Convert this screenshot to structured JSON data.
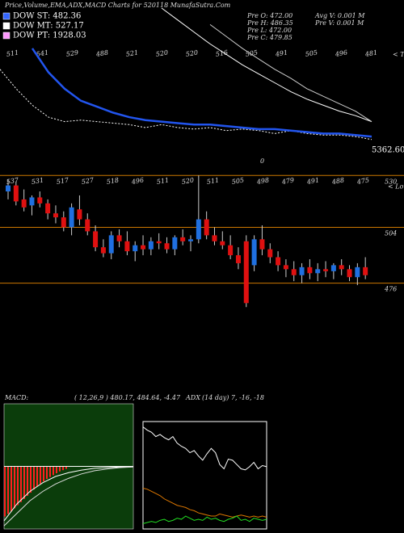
{
  "header": {
    "title": "Price,Volume,EMA,ADX,MACD Charts for 520118 MunafaSutra.Com"
  },
  "legend": [
    {
      "label": "DOW ST: 482.36",
      "color": "#3366ff"
    },
    {
      "label": "DOW MT: 527.17",
      "color": "#ffffff"
    },
    {
      "label": "DOW PT: 1928.03",
      "color": "#ff99ff"
    }
  ],
  "info": [
    "Pre  O: 472.00",
    "Pre  H: 486.35",
    "Pre  L: 472.00",
    "Pre  C: 479.85"
  ],
  "info2": [
    "Avg  V: 0.001 M",
    "Pre  V: 0.001 M"
  ],
  "chart_data": [
    {
      "type": "line",
      "tops_label": "< Tops",
      "price_label": "5362.60",
      "zero_label": "0",
      "xlim": [
        0,
        23
      ],
      "ylim": [
        0,
        100
      ],
      "labels": [
        511,
        541,
        529,
        488,
        521,
        520,
        520,
        516,
        505,
        491,
        505,
        496,
        481
      ],
      "series": [
        {
          "name": "price",
          "color": "#ffffff",
          "dash": true,
          "x": [
            0,
            1,
            2,
            3,
            4,
            5,
            6,
            7,
            8,
            9,
            10,
            11,
            12,
            13,
            14,
            15,
            16,
            17,
            18,
            19,
            20,
            21,
            22,
            23
          ],
          "values": [
            59,
            46,
            35,
            27,
            24,
            25,
            24,
            23,
            22,
            20,
            22,
            20,
            19,
            20,
            18,
            19,
            18,
            16,
            18,
            16,
            15,
            15,
            14,
            12
          ]
        },
        {
          "name": "ema",
          "color": "#2255ee",
          "width": 2.5,
          "x": [
            2,
            3,
            4,
            5,
            6,
            7,
            8,
            9,
            10,
            11,
            12,
            13,
            14,
            15,
            16,
            17,
            18,
            19,
            20,
            21,
            22,
            23
          ],
          "values": [
            73,
            57,
            46,
            38,
            34,
            30,
            27,
            25,
            24,
            23,
            22,
            22,
            21,
            20,
            19,
            19,
            18,
            17,
            16,
            16,
            15,
            14
          ]
        },
        {
          "name": "tops",
          "color": "#ffffff",
          "x": [
            10,
            11,
            12,
            13,
            14,
            15,
            16,
            17,
            18,
            19,
            20,
            21,
            22,
            23
          ],
          "values": [
            100,
            92,
            84,
            76,
            69,
            62,
            56,
            50,
            44,
            39,
            35,
            31,
            28,
            24
          ]
        },
        {
          "name": "tops2",
          "color": "#cccccc",
          "x": [
            13,
            14,
            15,
            16,
            17,
            18,
            19,
            20,
            21,
            22,
            23
          ],
          "values": [
            89,
            81,
            73,
            66,
            59,
            53,
            46,
            41,
            36,
            31,
            24
          ]
        }
      ]
    },
    {
      "type": "candlestick",
      "lows_label": "< Lows",
      "ylim": [
        456,
        537
      ],
      "levels": [
        530,
        504,
        476
      ],
      "level_color": "#cc7700",
      "up_color": "#1f6fe0",
      "down_color": "#e01010",
      "labels": [
        537,
        531,
        517,
        527,
        518,
        496,
        511,
        520,
        511,
        505,
        498,
        479,
        491,
        488,
        475
      ],
      "candles": [
        [
          522,
          528,
          518,
          525
        ],
        [
          525,
          527,
          515,
          517
        ],
        [
          518,
          523,
          512,
          514
        ],
        [
          515,
          520,
          510,
          519
        ],
        [
          519,
          522,
          514,
          516
        ],
        [
          516,
          518,
          508,
          511
        ],
        [
          511,
          515,
          506,
          509
        ],
        [
          509,
          512,
          502,
          504
        ],
        [
          504,
          516,
          500,
          514
        ],
        [
          513,
          520,
          505,
          508
        ],
        [
          508,
          511,
          500,
          502
        ],
        [
          502,
          505,
          492,
          494
        ],
        [
          494,
          498,
          489,
          491
        ],
        [
          491,
          502,
          488,
          500
        ],
        [
          500,
          503,
          494,
          497
        ],
        [
          497,
          502,
          490,
          492
        ],
        [
          492,
          497,
          487,
          495
        ],
        [
          495,
          500,
          490,
          493
        ],
        [
          493,
          499,
          490,
          497
        ],
        [
          497,
          501,
          493,
          496
        ],
        [
          496,
          499,
          491,
          493
        ],
        [
          493,
          500,
          490,
          499
        ],
        [
          499,
          503,
          495,
          497
        ],
        [
          497,
          500,
          492,
          498
        ],
        [
          498,
          530,
          496,
          508
        ],
        [
          508,
          512,
          498,
          500
        ],
        [
          500,
          504,
          495,
          497
        ],
        [
          497,
          502,
          493,
          495
        ],
        [
          495,
          500,
          488,
          490
        ],
        [
          490,
          494,
          483,
          486
        ],
        [
          497,
          500,
          464,
          466
        ],
        [
          485,
          500,
          482,
          498
        ],
        [
          498,
          505,
          490,
          493
        ],
        [
          493,
          496,
          486,
          489
        ],
        [
          489,
          492,
          482,
          485
        ],
        [
          485,
          488,
          479,
          483
        ],
        [
          483,
          487,
          477,
          480
        ],
        [
          480,
          486,
          476,
          484
        ],
        [
          484,
          488,
          478,
          481
        ],
        [
          481,
          486,
          477,
          483
        ],
        [
          483,
          487,
          479,
          482
        ],
        [
          482,
          486,
          478,
          485
        ],
        [
          485,
          488,
          480,
          483
        ],
        [
          483,
          485,
          477,
          479
        ],
        [
          479,
          486,
          475,
          484
        ],
        [
          484,
          489,
          478,
          480
        ]
      ]
    },
    {
      "type": "macd",
      "title": "MACD:",
      "params": "( 12,26,9 ) 480.17, 484.64, -4.47",
      "background": "#0b3d0b",
      "xlim": [
        0,
        40
      ],
      "ylim": [
        -10,
        10
      ],
      "histogram": {
        "color": "#ff2020",
        "values": [
          -8,
          -7.6,
          -7.2,
          -6.7,
          -6.2,
          -5.7,
          -5.2,
          -4.7,
          -4.2,
          -3.7,
          -3.2,
          -2.8,
          -2.4,
          -2,
          -1.7,
          -1.4,
          -1.1,
          -0.8,
          -0.6,
          -0.4
        ]
      },
      "series": [
        {
          "name": "macd",
          "color": "#ffffff",
          "x": [
            0,
            4,
            8,
            12,
            16,
            20,
            24,
            28,
            32,
            36,
            40
          ],
          "values": [
            -8.7,
            -6,
            -4,
            -2.6,
            -1.6,
            -1,
            -0.6,
            -0.3,
            -0.2,
            -0.1,
            0
          ]
        },
        {
          "name": "signal",
          "color": "#dddddd",
          "x": [
            0,
            4,
            8,
            12,
            16,
            20,
            24,
            28,
            32,
            36,
            40
          ],
          "values": [
            -9.5,
            -7.5,
            -5.5,
            -4,
            -2.8,
            -1.9,
            -1.2,
            -0.7,
            -0.4,
            -0.2,
            -0.1
          ]
        }
      ]
    },
    {
      "type": "adx",
      "title": "ADX",
      "params": "(14  day) 7, -16, -18",
      "xlim": [
        0,
        29
      ],
      "ylim": [
        0,
        100
      ],
      "series": [
        {
          "name": "adx",
          "color": "#ffffff",
          "values": [
            95,
            92,
            90,
            86,
            88,
            85,
            83,
            86,
            80,
            77,
            75,
            71,
            73,
            68,
            64,
            70,
            75,
            71,
            60,
            56,
            65,
            64,
            60,
            56,
            55,
            58,
            62,
            56,
            59,
            58
          ]
        },
        {
          "name": "di-minus",
          "color": "#dd7700",
          "values": [
            38,
            37,
            35,
            33,
            31,
            28,
            26,
            24,
            22,
            21,
            20,
            18,
            17,
            15,
            14,
            13,
            12,
            12,
            14,
            13,
            12,
            11,
            12,
            13,
            12,
            11,
            12,
            11,
            12,
            11
          ]
        },
        {
          "name": "di-plus",
          "color": "#22dd22",
          "values": [
            5,
            6,
            7,
            6,
            8,
            9,
            7,
            8,
            10,
            9,
            12,
            10,
            8,
            9,
            8,
            11,
            9,
            10,
            8,
            7,
            9,
            10,
            12,
            8,
            9,
            7,
            10,
            9,
            8,
            9
          ]
        }
      ]
    }
  ]
}
